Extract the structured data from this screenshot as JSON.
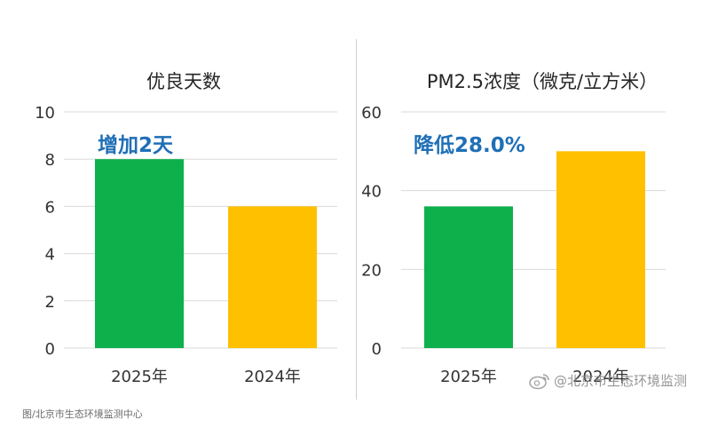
{
  "footer": {
    "source": "图/北京市生态环境监测中心"
  },
  "watermark": {
    "text": "@北京市生态环境监测"
  },
  "colors": {
    "green": "#0db04b",
    "yellow": "#ffc000",
    "annotation": "#1f6fb7",
    "grid": "#d9d9d9"
  },
  "chart_data": [
    {
      "type": "bar",
      "title": "优良天数",
      "categories": [
        "2025年",
        "2024年"
      ],
      "values": [
        8,
        6
      ],
      "bar_colors": [
        "#0db04b",
        "#ffc000"
      ],
      "ylim": [
        0,
        10
      ],
      "yticks": [
        0,
        2,
        4,
        6,
        8,
        10
      ],
      "grid": true,
      "annotation": "增加2天"
    },
    {
      "type": "bar",
      "title": "PM2.5浓度（微克/立方米）",
      "categories": [
        "2025年",
        "2024年"
      ],
      "values": [
        36,
        50
      ],
      "bar_colors": [
        "#0db04b",
        "#ffc000"
      ],
      "ylim": [
        0,
        60
      ],
      "yticks": [
        0,
        20,
        40,
        60
      ],
      "grid": true,
      "annotation": "降低28.0%"
    }
  ]
}
